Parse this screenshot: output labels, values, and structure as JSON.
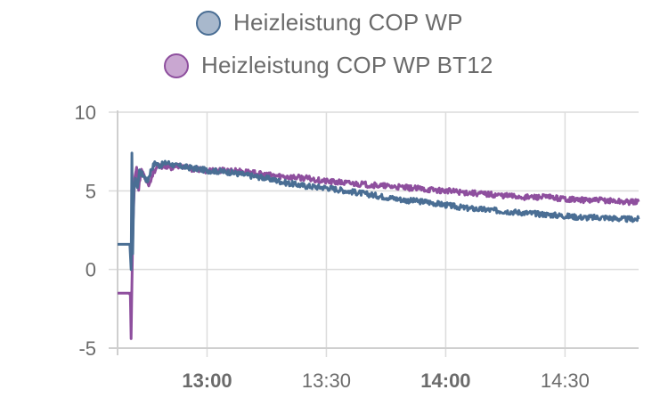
{
  "chart_data": {
    "type": "line",
    "title": "",
    "xlabel": "",
    "ylabel": "",
    "ylim": [
      -5,
      10
    ],
    "yticks": [
      10,
      5,
      0,
      -5
    ],
    "xticks": [
      {
        "label": "13:00",
        "minutes": 780,
        "bold": true
      },
      {
        "label": "13:30",
        "minutes": 810,
        "bold": false
      },
      {
        "label": "14:00",
        "minutes": 840,
        "bold": true
      },
      {
        "label": "14:30",
        "minutes": 870,
        "bold": false
      }
    ],
    "xlim_minutes": [
      757.5,
      888.5
    ],
    "grid": true,
    "legend_position": "top-center",
    "series": [
      {
        "name": "Heizleistung COP WP",
        "color": "#4a6e94",
        "fill": "#a8b8cc",
        "points": [
          [
            757.5,
            1.6
          ],
          [
            760.0,
            1.6
          ],
          [
            760.6,
            1.6
          ],
          [
            760.9,
            0.0
          ],
          [
            761.1,
            7.4
          ],
          [
            761.3,
            1.0
          ],
          [
            761.6,
            5.0
          ],
          [
            762.0,
            5.8
          ],
          [
            762.5,
            5.2
          ],
          [
            763.0,
            6.2
          ],
          [
            764.0,
            6.0
          ],
          [
            765.0,
            5.6
          ],
          [
            766.0,
            6.4
          ],
          [
            767.0,
            6.8
          ],
          [
            768.0,
            6.6
          ],
          [
            770.0,
            6.8
          ],
          [
            772.0,
            6.6
          ],
          [
            775.0,
            6.5
          ],
          [
            780.0,
            6.3
          ],
          [
            785.0,
            6.2
          ],
          [
            790.0,
            6.0
          ],
          [
            795.0,
            5.8
          ],
          [
            800.0,
            5.5
          ],
          [
            805.0,
            5.3
          ],
          [
            810.0,
            5.2
          ],
          [
            815.0,
            5.0
          ],
          [
            820.0,
            4.8
          ],
          [
            825.0,
            4.6
          ],
          [
            830.0,
            4.4
          ],
          [
            835.0,
            4.3
          ],
          [
            840.0,
            4.1
          ],
          [
            845.0,
            3.9
          ],
          [
            850.0,
            3.8
          ],
          [
            855.0,
            3.7
          ],
          [
            860.0,
            3.6
          ],
          [
            865.0,
            3.5
          ],
          [
            870.0,
            3.4
          ],
          [
            875.0,
            3.3
          ],
          [
            880.0,
            3.3
          ],
          [
            885.0,
            3.2
          ],
          [
            888.5,
            3.2
          ]
        ]
      },
      {
        "name": "Heizleistung COP WP BT12",
        "color": "#8e4f9e",
        "fill": "#c9a7d1",
        "points": [
          [
            757.5,
            -1.5
          ],
          [
            760.0,
            -1.5
          ],
          [
            760.7,
            -1.5
          ],
          [
            760.9,
            -4.4
          ],
          [
            761.1,
            -1.0
          ],
          [
            761.4,
            3.0
          ],
          [
            761.8,
            5.8
          ],
          [
            762.3,
            6.5
          ],
          [
            762.8,
            5.2
          ],
          [
            763.5,
            6.4
          ],
          [
            764.5,
            5.8
          ],
          [
            765.5,
            5.4
          ],
          [
            766.5,
            6.2
          ],
          [
            767.5,
            6.5
          ],
          [
            769.0,
            6.6
          ],
          [
            771.0,
            6.5
          ],
          [
            773.0,
            6.6
          ],
          [
            776.0,
            6.4
          ],
          [
            780.0,
            6.3
          ],
          [
            785.0,
            6.3
          ],
          [
            790.0,
            6.2
          ],
          [
            795.0,
            6.0
          ],
          [
            800.0,
            5.9
          ],
          [
            805.0,
            5.8
          ],
          [
            810.0,
            5.6
          ],
          [
            815.0,
            5.5
          ],
          [
            820.0,
            5.4
          ],
          [
            825.0,
            5.3
          ],
          [
            830.0,
            5.2
          ],
          [
            835.0,
            5.1
          ],
          [
            840.0,
            5.0
          ],
          [
            845.0,
            4.9
          ],
          [
            850.0,
            4.8
          ],
          [
            855.0,
            4.7
          ],
          [
            860.0,
            4.6
          ],
          [
            865.0,
            4.6
          ],
          [
            870.0,
            4.5
          ],
          [
            875.0,
            4.4
          ],
          [
            880.0,
            4.4
          ],
          [
            885.0,
            4.3
          ],
          [
            888.5,
            4.3
          ]
        ]
      }
    ]
  }
}
